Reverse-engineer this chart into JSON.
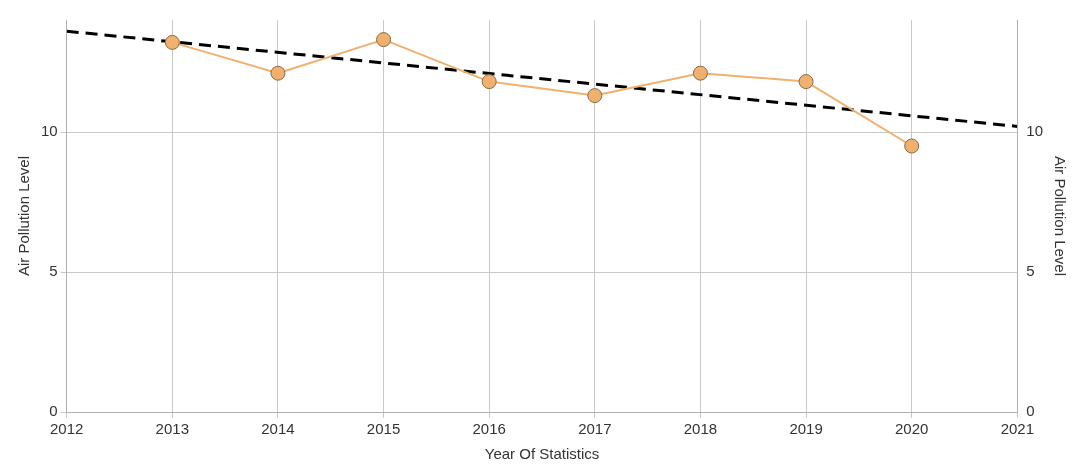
{
  "chart_data": {
    "type": "line",
    "xlabel": "Year Of Statistics",
    "ylabel": "Air Pollution Level",
    "y2label": "Air Pollution Level",
    "x": [
      2013,
      2014,
      2015,
      2016,
      2017,
      2018,
      2019,
      2020
    ],
    "series": [
      {
        "color": "#f0b070",
        "values": [
          13.2,
          12.1,
          13.3,
          11.8,
          11.3,
          12.1,
          11.8,
          9.5
        ],
        "marker": "circle",
        "line_style": "solid"
      },
      {
        "type": "line",
        "color": "#000000",
        "x": [
          2012,
          2021
        ],
        "values": [
          13.6,
          10.2
        ],
        "marker": "none",
        "line_style": "dashed"
      }
    ],
    "xlim": [
      2012,
      2021
    ],
    "xticks": [
      2012,
      2013,
      2014,
      2015,
      2016,
      2017,
      2018,
      2019,
      2020,
      2021
    ],
    "ylim": [
      0,
      14
    ],
    "yticks": [
      0,
      5,
      10
    ],
    "y2lim": [
      0,
      14
    ],
    "y2ticks": [
      0,
      5,
      10
    ],
    "grid": true,
    "legend": false
  }
}
